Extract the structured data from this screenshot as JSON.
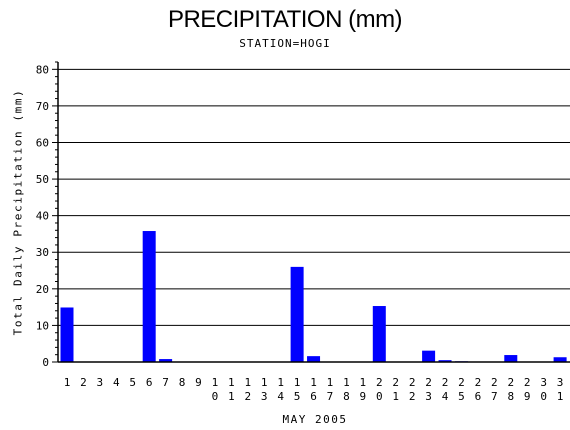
{
  "chart_data": {
    "type": "bar",
    "title": "PRECIPITATION (mm)",
    "subtitle": "STATION=HOGI",
    "xlabel": "MAY 2005",
    "ylabel": "Total Daily Precipitation (mm)",
    "ylim": [
      0,
      82
    ],
    "yticks": [
      0,
      10,
      20,
      30,
      40,
      50,
      60,
      70,
      80
    ],
    "grid": true,
    "bar_color": "#0000ff",
    "categories": [
      "1",
      "2",
      "3",
      "4",
      "5",
      "6",
      "7",
      "8",
      "9",
      "10",
      "11",
      "12",
      "13",
      "14",
      "15",
      "16",
      "17",
      "18",
      "19",
      "20",
      "21",
      "22",
      "23",
      "24",
      "25",
      "26",
      "27",
      "28",
      "29",
      "30",
      "31"
    ],
    "values": [
      14.9,
      0,
      0,
      0,
      0,
      35.8,
      0.8,
      0,
      0,
      0,
      0,
      0,
      0,
      0,
      26.0,
      1.6,
      0,
      0,
      0,
      15.3,
      0,
      0,
      3.1,
      0.5,
      0.2,
      0,
      0,
      1.9,
      0,
      0,
      1.3
    ]
  }
}
